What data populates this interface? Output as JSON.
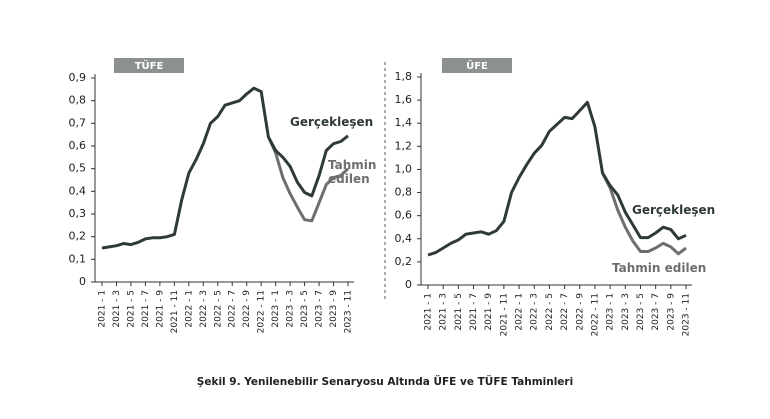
{
  "caption": "Şekil 9. Yenilenebilir Senaryosu Altında ÜFE ve TÜFE Tahminleri",
  "chart_data": [
    {
      "type": "line",
      "title": "TÜFE",
      "categories": [
        "2021 - 1",
        null,
        "2021 - 3",
        null,
        "2021 - 5",
        null,
        "2021 - 7",
        null,
        "2021 - 9",
        null,
        "2021 - 11",
        null,
        "2022 - 1",
        null,
        "2022 - 3",
        null,
        "2022 - 5",
        null,
        "2022 - 7",
        null,
        "2022 - 9",
        null,
        "2022 - 11",
        null,
        "2023 - 1",
        null,
        "2023 - 3",
        null,
        "2023 - 5",
        null,
        "2023 - 7",
        null,
        "2023 - 9",
        null,
        "2023 - 11"
      ],
      "ylim": [
        0,
        0.9
      ],
      "yticks": [
        0,
        {
          "value": 0.1,
          "label": "0,1"
        },
        {
          "value": 0.2,
          "label": "0,2"
        },
        {
          "value": 0.3,
          "label": "0,3"
        },
        {
          "value": 0.4,
          "label": "0,4"
        },
        {
          "value": 0.5,
          "label": "0,5"
        },
        {
          "value": 0.6,
          "label": "0,6"
        },
        {
          "value": 0.7,
          "label": "0,7"
        },
        {
          "value": 0.8,
          "label": "0,8"
        },
        {
          "value": 0.9,
          "label": "0,9"
        }
      ],
      "series": [
        {
          "name": "Gerçekleşen",
          "color": "#2e3a34",
          "values": [
            0.15,
            0.155,
            0.16,
            0.17,
            0.165,
            0.175,
            0.19,
            0.195,
            0.195,
            0.2,
            0.21,
            0.36,
            0.48,
            0.54,
            0.61,
            0.7,
            0.73,
            0.78,
            0.79,
            0.8,
            0.83,
            0.855,
            0.84,
            0.64,
            0.58,
            0.55,
            0.51,
            0.44,
            0.395,
            0.38,
            0.47,
            0.58,
            0.61,
            0.62,
            0.645
          ]
        },
        {
          "name": "Tahmin edilen",
          "color": "#6d6f6e",
          "values": [
            null,
            null,
            null,
            null,
            null,
            null,
            null,
            null,
            null,
            null,
            null,
            null,
            null,
            null,
            null,
            null,
            null,
            null,
            null,
            null,
            null,
            null,
            null,
            0.64,
            0.57,
            0.46,
            0.39,
            0.33,
            0.275,
            0.27,
            0.35,
            0.43,
            0.46,
            0.47,
            0.5
          ]
        }
      ]
    },
    {
      "type": "line",
      "title": "ÜFE",
      "categories": [
        "2021 - 1",
        null,
        "2021 - 3",
        null,
        "2021 - 5",
        null,
        "2021 - 7",
        null,
        "2021 - 9",
        null,
        "2021 - 11",
        null,
        "2022 - 1",
        null,
        "2022 - 3",
        null,
        "2022 - 5",
        null,
        "2022 - 7",
        null,
        "2022 - 9",
        null,
        "2022 - 11",
        null,
        "2023 - 1",
        null,
        "2023 - 3",
        null,
        "2023 - 5",
        null,
        "2023 - 7",
        null,
        "2023 - 9",
        null,
        "2023 - 11"
      ],
      "ylim": [
        0,
        1.8
      ],
      "yticks": [
        0,
        {
          "value": 0.2,
          "label": "0,2"
        },
        {
          "value": 0.4,
          "label": "0,4"
        },
        {
          "value": 0.6,
          "label": "0,6"
        },
        {
          "value": 0.8,
          "label": "0,8"
        },
        {
          "value": 1.0,
          "label": "1,0"
        },
        {
          "value": 1.2,
          "label": "1,2"
        },
        {
          "value": 1.4,
          "label": "1,4"
        },
        {
          "value": 1.6,
          "label": "1,6"
        },
        {
          "value": 1.8,
          "label": "1,8"
        }
      ],
      "series": [
        {
          "name": "Gerçekleşen",
          "color": "#2e3a34",
          "values": [
            0.26,
            0.28,
            0.32,
            0.36,
            0.39,
            0.44,
            0.45,
            0.46,
            0.44,
            0.47,
            0.55,
            0.8,
            0.93,
            1.04,
            1.14,
            1.21,
            1.33,
            1.39,
            1.45,
            1.44,
            1.51,
            1.58,
            1.37,
            0.97,
            0.86,
            0.78,
            0.63,
            0.52,
            0.41,
            0.41,
            0.45,
            0.5,
            0.48,
            0.4,
            0.43
          ]
        },
        {
          "name": "Tahmin edilen",
          "color": "#6d6f6e",
          "values": [
            null,
            null,
            null,
            null,
            null,
            null,
            null,
            null,
            null,
            null,
            null,
            null,
            null,
            null,
            null,
            null,
            null,
            null,
            null,
            null,
            null,
            null,
            null,
            0.97,
            0.84,
            0.65,
            0.5,
            0.38,
            0.29,
            0.29,
            0.32,
            0.36,
            0.33,
            0.27,
            0.32
          ]
        }
      ]
    }
  ]
}
